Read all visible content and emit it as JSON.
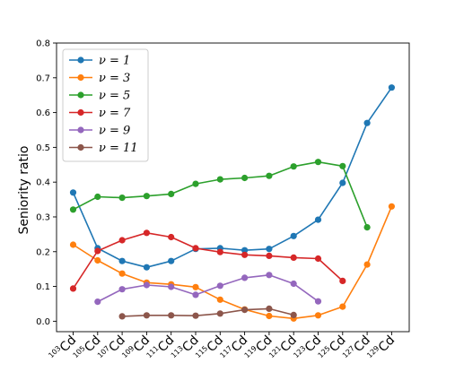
{
  "chart_data": {
    "type": "line",
    "ylabel": "Seniority ratio",
    "xlabel": "",
    "ylim": [
      -0.03,
      0.8
    ],
    "yticks": [
      0.0,
      0.1,
      0.2,
      0.3,
      0.4,
      0.5,
      0.6,
      0.7,
      0.8
    ],
    "ytick_labels": [
      "0.0",
      "0.1",
      "0.2",
      "0.3",
      "0.4",
      "0.5",
      "0.6",
      "0.7",
      "0.8"
    ],
    "categories": [
      {
        "mass": "103",
        "element": "Cd"
      },
      {
        "mass": "105",
        "element": "Cd"
      },
      {
        "mass": "107",
        "element": "Cd"
      },
      {
        "mass": "109",
        "element": "Cd"
      },
      {
        "mass": "111",
        "element": "Cd"
      },
      {
        "mass": "113",
        "element": "Cd"
      },
      {
        "mass": "115",
        "element": "Cd"
      },
      {
        "mass": "117",
        "element": "Cd"
      },
      {
        "mass": "119",
        "element": "Cd"
      },
      {
        "mass": "121",
        "element": "Cd"
      },
      {
        "mass": "123",
        "element": "Cd"
      },
      {
        "mass": "125",
        "element": "Cd"
      },
      {
        "mass": "127",
        "element": "Cd"
      },
      {
        "mass": "129",
        "element": "Cd"
      }
    ],
    "grid": false,
    "legend_position": "top-left",
    "series": [
      {
        "name": "ν = 1",
        "color": "#1f77b4",
        "values": [
          0.37,
          0.21,
          0.173,
          0.155,
          0.173,
          0.208,
          0.21,
          0.204,
          0.208,
          0.245,
          0.292,
          0.398,
          0.57,
          0.672
        ]
      },
      {
        "name": "ν = 3",
        "color": "#ff7f0e",
        "values": [
          0.22,
          0.175,
          0.137,
          0.111,
          0.106,
          0.098,
          0.062,
          0.034,
          0.015,
          0.008,
          0.017,
          0.042,
          0.163,
          0.33
        ]
      },
      {
        "name": "ν = 5",
        "color": "#2ca02c",
        "values": [
          0.321,
          0.358,
          0.355,
          0.36,
          0.366,
          0.395,
          0.408,
          0.412,
          0.418,
          0.445,
          0.458,
          0.446,
          0.27,
          null
        ]
      },
      {
        "name": "ν = 7",
        "color": "#d62728",
        "values": [
          0.094,
          0.202,
          0.233,
          0.254,
          0.242,
          0.21,
          0.199,
          0.191,
          0.188,
          0.183,
          0.18,
          0.116,
          null,
          null
        ]
      },
      {
        "name": "ν = 9",
        "color": "#9467bd",
        "values": [
          null,
          0.056,
          0.092,
          0.104,
          0.099,
          0.076,
          0.102,
          0.125,
          0.133,
          0.108,
          0.057,
          null,
          null,
          null
        ]
      },
      {
        "name": "ν = 11",
        "color": "#8c564b",
        "values": [
          null,
          null,
          0.014,
          0.017,
          0.017,
          0.016,
          0.022,
          0.033,
          0.036,
          0.018,
          null,
          null,
          null,
          null
        ]
      }
    ]
  }
}
